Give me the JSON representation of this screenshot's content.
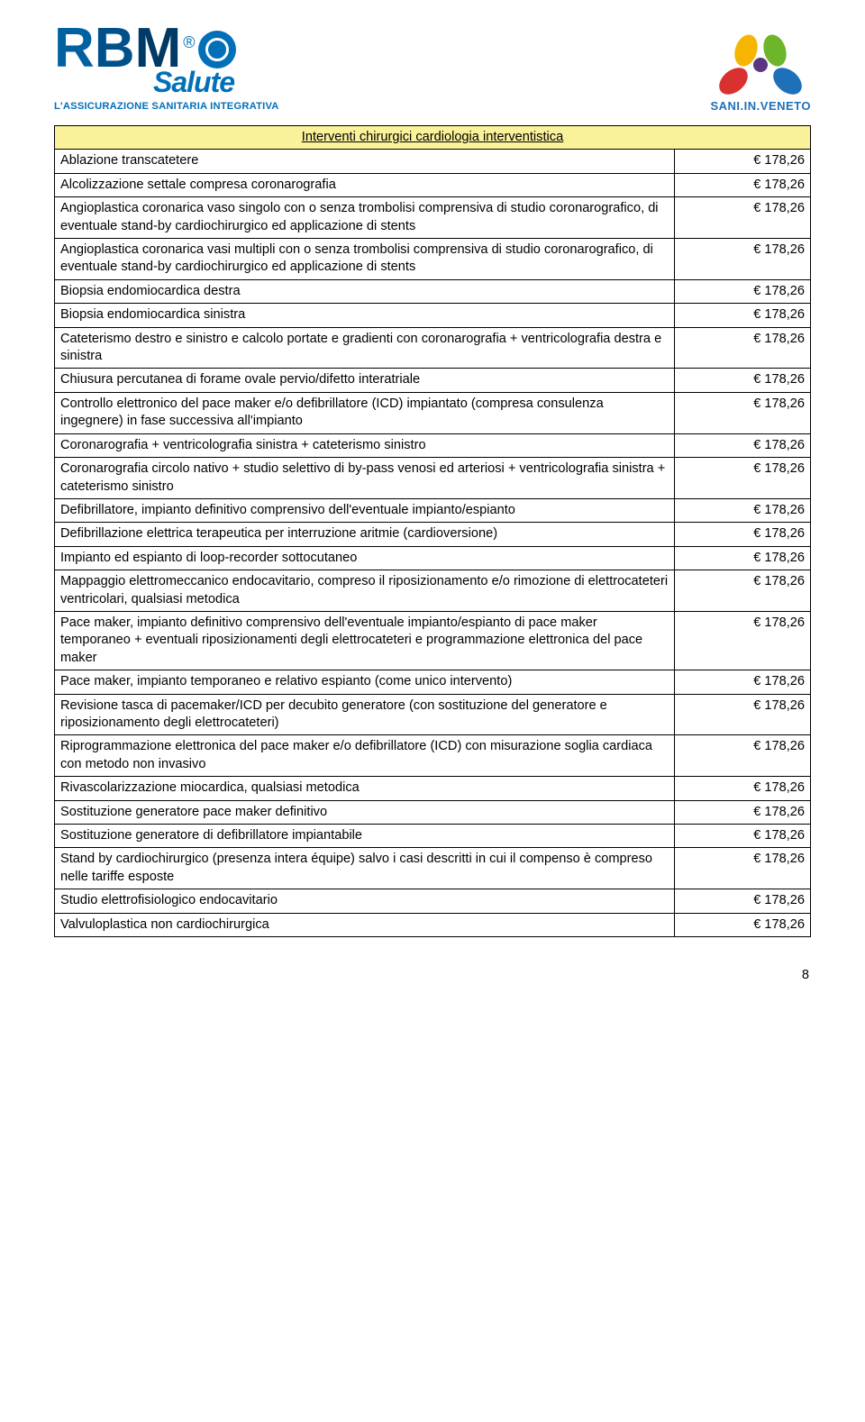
{
  "header": {
    "left_logo": {
      "brand": "RBM",
      "sub": "Salute",
      "tagline": "L'ASSICURAZIONE SANITARIA INTEGRATIVA"
    },
    "right_logo": {
      "label": "SANI.IN.VENETO"
    }
  },
  "table": {
    "section_title": "Interventi chirurgici cardiologia interventistica",
    "section_bg": "#faf29a",
    "border_color": "#000000",
    "font_size_pt": 11,
    "rows": [
      {
        "desc": "Ablazione transcatetere",
        "price": "€ 178,26"
      },
      {
        "desc": "Alcolizzazione settale compresa coronarografia",
        "price": "€ 178,26"
      },
      {
        "desc": "Angioplastica coronarica vaso singolo con o senza trombolisi comprensiva di studio coronarografico, di eventuale stand-by cardiochirurgico ed applicazione di stents",
        "price": "€ 178,26"
      },
      {
        "desc": "Angioplastica coronarica vasi multipli con o senza trombolisi comprensiva di studio coronarografico, di eventuale stand-by cardiochirurgico ed applicazione di stents",
        "price": "€ 178,26"
      },
      {
        "desc": "Biopsia endomiocardica destra",
        "price": "€ 178,26"
      },
      {
        "desc": "Biopsia endomiocardica sinistra",
        "price": "€ 178,26"
      },
      {
        "desc": "Cateterismo destro e sinistro e calcolo portate e gradienti con coronarografia + ventricolografia destra e sinistra",
        "price": "€ 178,26"
      },
      {
        "desc": "Chiusura percutanea di forame ovale pervio/difetto interatriale",
        "price": "€ 178,26"
      },
      {
        "desc": "Controllo elettronico del pace maker e/o defibrillatore (ICD) impiantato (compresa consulenza ingegnere) in fase successiva all'impianto",
        "price": "€ 178,26"
      },
      {
        "desc": "Coronarografia + ventricolografia sinistra + cateterismo sinistro",
        "price": "€ 178,26"
      },
      {
        "desc": "Coronarografia circolo nativo + studio selettivo di by-pass venosi ed arteriosi + ventricolografia sinistra + cateterismo sinistro",
        "price": "€ 178,26"
      },
      {
        "desc": "Defibrillatore, impianto definitivo comprensivo dell'eventuale impianto/espianto",
        "price": "€ 178,26"
      },
      {
        "desc": "Defibrillazione elettrica terapeutica per interruzione aritmie (cardioversione)",
        "price": "€ 178,26"
      },
      {
        "desc": "Impianto ed espianto di loop-recorder sottocutaneo",
        "price": "€ 178,26"
      },
      {
        "desc": "Mappaggio elettromeccanico endocavitario, compreso il riposizionamento e/o rimozione di elettrocateteri ventricolari, qualsiasi metodica",
        "price": "€ 178,26"
      },
      {
        "desc": "Pace maker, impianto definitivo comprensivo dell'eventuale impianto/espianto di pace maker temporaneo + eventuali riposizionamenti degli elettrocateteri e programmazione elettronica del pace maker",
        "price": "€ 178,26"
      },
      {
        "desc": "Pace maker, impianto temporaneo e relativo espianto (come unico intervento)",
        "price": "€ 178,26"
      },
      {
        "desc": "Revisione tasca di pacemaker/ICD per decubito generatore (con sostituzione del generatore e riposizionamento degli elettrocateteri)",
        "price": "€ 178,26"
      },
      {
        "desc": "Riprogrammazione elettronica del pace maker e/o defibrillatore (ICD) con misurazione soglia cardiaca con metodo non invasivo",
        "price": "€ 178,26"
      },
      {
        "desc": "Rivascolarizzazione miocardica, qualsiasi metodica",
        "price": "€ 178,26"
      },
      {
        "desc": "Sostituzione generatore pace maker definitivo",
        "price": "€ 178,26"
      },
      {
        "desc": "Sostituzione generatore di defibrillatore impiantabile",
        "price": "€ 178,26"
      },
      {
        "desc": "Stand by cardiochirurgico (presenza intera équipe) salvo i casi descritti in cui il compenso è compreso nelle tariffe esposte",
        "price": "€ 178,26"
      },
      {
        "desc": "Studio elettrofisiologico endocavitario",
        "price": "€ 178,26"
      },
      {
        "desc": "Valvuloplastica non cardiochirurgica",
        "price": "€ 178,26"
      }
    ]
  },
  "page_number": "8"
}
